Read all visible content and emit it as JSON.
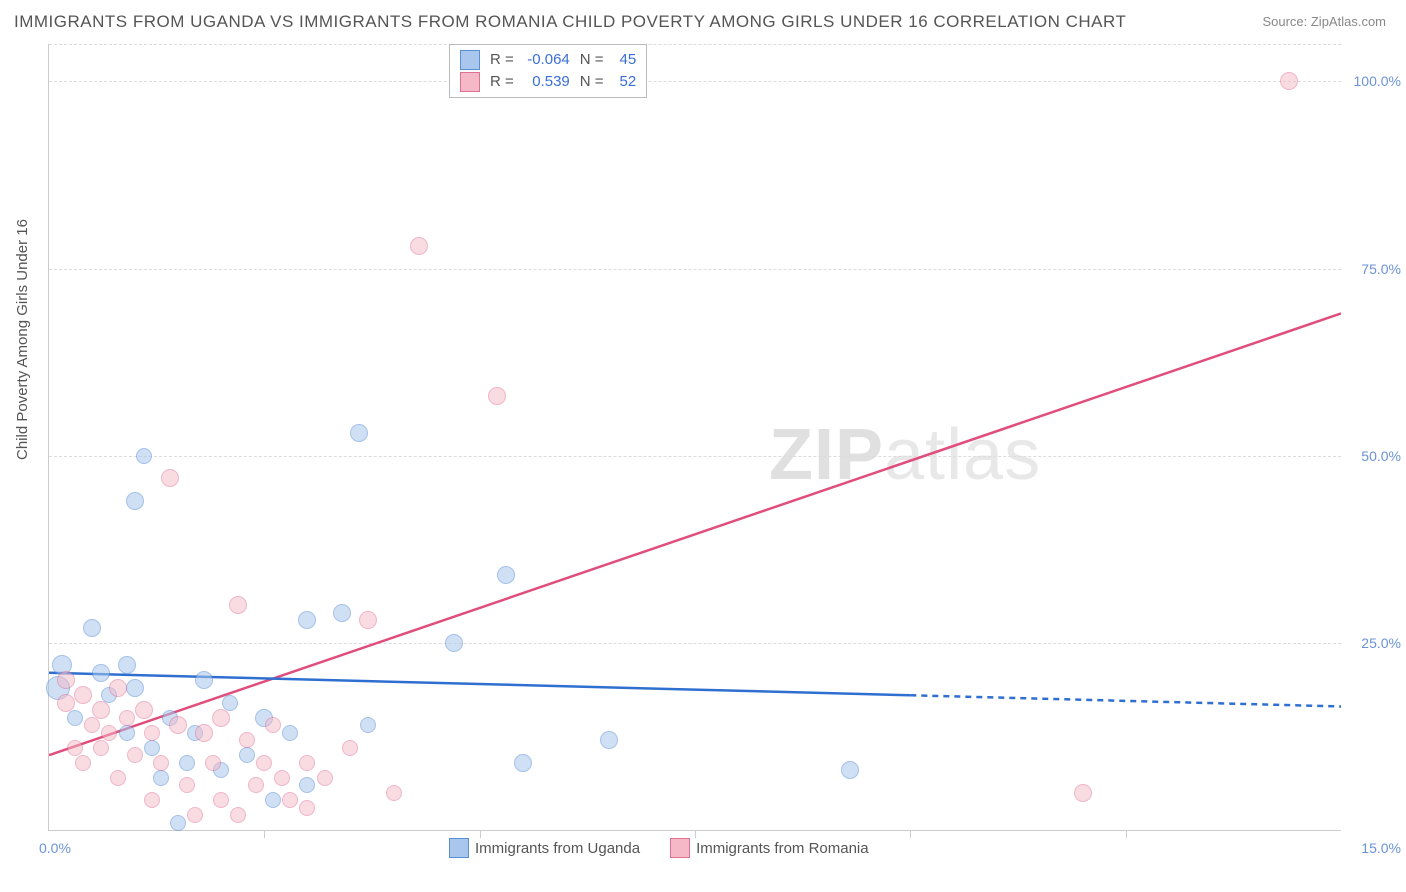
{
  "title": "IMMIGRANTS FROM UGANDA VS IMMIGRANTS FROM ROMANIA CHILD POVERTY AMONG GIRLS UNDER 16 CORRELATION CHART",
  "source_text": "Source: ZipAtlas.com",
  "ylabel": "Child Poverty Among Girls Under 16",
  "watermark_zip": "ZIP",
  "watermark_rest": "atlas",
  "chart": {
    "type": "scatter",
    "xlim": [
      0,
      15
    ],
    "ylim": [
      0,
      105
    ],
    "grid_color": "#dcdcdc",
    "background_color": "#ffffff",
    "yticks": [
      {
        "value": 25,
        "label": "25.0%"
      },
      {
        "value": 50,
        "label": "50.0%"
      },
      {
        "value": 75,
        "label": "75.0%"
      },
      {
        "value": 100,
        "label": "100.0%"
      },
      {
        "value": 105,
        "label": ""
      }
    ],
    "xticks_minor": [
      2.5,
      5.0,
      7.5,
      10.0,
      12.5
    ],
    "xtick_left_label": "0.0%",
    "xtick_right_label": "15.0%"
  },
  "series": [
    {
      "name": "Immigrants from Uganda",
      "color_fill": "#a9c7ec",
      "color_stroke": "#5a8fd6",
      "fill_opacity": 0.55,
      "marker_radius": 8,
      "stats": {
        "r_label": "R =",
        "r_value": "-0.064",
        "n_label": "N =",
        "n_value": "45"
      },
      "trend": {
        "x1": 0,
        "y1": 21,
        "x2": 10,
        "y2": 18,
        "x3": 15,
        "y3": 16.5,
        "color": "#2f6fd0",
        "width": 2.5,
        "dash_after": 10
      },
      "points": [
        {
          "x": 0.1,
          "y": 19,
          "r": 11
        },
        {
          "x": 0.15,
          "y": 22,
          "r": 9
        },
        {
          "x": 0.5,
          "y": 27,
          "r": 8
        },
        {
          "x": 0.6,
          "y": 21,
          "r": 8
        },
        {
          "x": 0.7,
          "y": 18,
          "r": 7
        },
        {
          "x": 0.3,
          "y": 15,
          "r": 7
        },
        {
          "x": 0.9,
          "y": 22,
          "r": 8
        },
        {
          "x": 1.0,
          "y": 44,
          "r": 8
        },
        {
          "x": 1.1,
          "y": 50,
          "r": 7
        },
        {
          "x": 0.9,
          "y": 13,
          "r": 7
        },
        {
          "x": 1.0,
          "y": 19,
          "r": 8
        },
        {
          "x": 1.2,
          "y": 11,
          "r": 7
        },
        {
          "x": 1.3,
          "y": 7,
          "r": 7
        },
        {
          "x": 1.4,
          "y": 15,
          "r": 7
        },
        {
          "x": 1.5,
          "y": 1,
          "r": 7
        },
        {
          "x": 1.6,
          "y": 9,
          "r": 7
        },
        {
          "x": 1.7,
          "y": 13,
          "r": 7
        },
        {
          "x": 1.8,
          "y": 20,
          "r": 8
        },
        {
          "x": 2.0,
          "y": 8,
          "r": 7
        },
        {
          "x": 2.1,
          "y": 17,
          "r": 7
        },
        {
          "x": 2.3,
          "y": 10,
          "r": 7
        },
        {
          "x": 2.5,
          "y": 15,
          "r": 8
        },
        {
          "x": 2.6,
          "y": 4,
          "r": 7
        },
        {
          "x": 2.8,
          "y": 13,
          "r": 7
        },
        {
          "x": 3.0,
          "y": 6,
          "r": 7
        },
        {
          "x": 3.0,
          "y": 28,
          "r": 8
        },
        {
          "x": 3.4,
          "y": 29,
          "r": 8
        },
        {
          "x": 3.6,
          "y": 53,
          "r": 8
        },
        {
          "x": 3.7,
          "y": 14,
          "r": 7
        },
        {
          "x": 4.7,
          "y": 25,
          "r": 8
        },
        {
          "x": 5.3,
          "y": 34,
          "r": 8
        },
        {
          "x": 5.5,
          "y": 9,
          "r": 8
        },
        {
          "x": 6.5,
          "y": 12,
          "r": 8
        },
        {
          "x": 9.3,
          "y": 8,
          "r": 8
        }
      ]
    },
    {
      "name": "Immigrants from Romania",
      "color_fill": "#f4b8c7",
      "color_stroke": "#df6f93",
      "fill_opacity": 0.5,
      "marker_radius": 8,
      "stats": {
        "r_label": "R =",
        "r_value": " 0.539",
        "n_label": "N =",
        "n_value": "52"
      },
      "trend": {
        "x1": 0,
        "y1": 10,
        "x2": 15,
        "y2": 69,
        "color": "#e04f7c",
        "width": 2.5
      },
      "points": [
        {
          "x": 0.2,
          "y": 17,
          "r": 8
        },
        {
          "x": 0.2,
          "y": 20,
          "r": 8
        },
        {
          "x": 0.3,
          "y": 11,
          "r": 7
        },
        {
          "x": 0.4,
          "y": 18,
          "r": 8
        },
        {
          "x": 0.4,
          "y": 9,
          "r": 7
        },
        {
          "x": 0.5,
          "y": 14,
          "r": 7
        },
        {
          "x": 0.6,
          "y": 16,
          "r": 8
        },
        {
          "x": 0.6,
          "y": 11,
          "r": 7
        },
        {
          "x": 0.7,
          "y": 13,
          "r": 7
        },
        {
          "x": 0.8,
          "y": 19,
          "r": 8
        },
        {
          "x": 0.8,
          "y": 7,
          "r": 7
        },
        {
          "x": 0.9,
          "y": 15,
          "r": 7
        },
        {
          "x": 1.0,
          "y": 10,
          "r": 7
        },
        {
          "x": 1.1,
          "y": 16,
          "r": 8
        },
        {
          "x": 1.2,
          "y": 13,
          "r": 7
        },
        {
          "x": 1.2,
          "y": 4,
          "r": 7
        },
        {
          "x": 1.3,
          "y": 9,
          "r": 7
        },
        {
          "x": 1.4,
          "y": 47,
          "r": 8
        },
        {
          "x": 1.5,
          "y": 14,
          "r": 8
        },
        {
          "x": 1.6,
          "y": 6,
          "r": 7
        },
        {
          "x": 1.7,
          "y": 2,
          "r": 7
        },
        {
          "x": 1.8,
          "y": 13,
          "r": 8
        },
        {
          "x": 1.9,
          "y": 9,
          "r": 7
        },
        {
          "x": 2.0,
          "y": 15,
          "r": 8
        },
        {
          "x": 2.0,
          "y": 4,
          "r": 7
        },
        {
          "x": 2.2,
          "y": 2,
          "r": 7
        },
        {
          "x": 2.2,
          "y": 30,
          "r": 8
        },
        {
          "x": 2.3,
          "y": 12,
          "r": 7
        },
        {
          "x": 2.4,
          "y": 6,
          "r": 7
        },
        {
          "x": 2.5,
          "y": 9,
          "r": 7
        },
        {
          "x": 2.6,
          "y": 14,
          "r": 7
        },
        {
          "x": 2.7,
          "y": 7,
          "r": 7
        },
        {
          "x": 2.8,
          "y": 4,
          "r": 7
        },
        {
          "x": 3.0,
          "y": 9,
          "r": 7
        },
        {
          "x": 3.0,
          "y": 3,
          "r": 7
        },
        {
          "x": 3.2,
          "y": 7,
          "r": 7
        },
        {
          "x": 3.5,
          "y": 11,
          "r": 7
        },
        {
          "x": 3.7,
          "y": 28,
          "r": 8
        },
        {
          "x": 4.0,
          "y": 5,
          "r": 7
        },
        {
          "x": 4.3,
          "y": 78,
          "r": 8
        },
        {
          "x": 5.2,
          "y": 58,
          "r": 8
        },
        {
          "x": 12.0,
          "y": 5,
          "r": 8
        },
        {
          "x": 14.4,
          "y": 100,
          "r": 8
        }
      ]
    }
  ]
}
